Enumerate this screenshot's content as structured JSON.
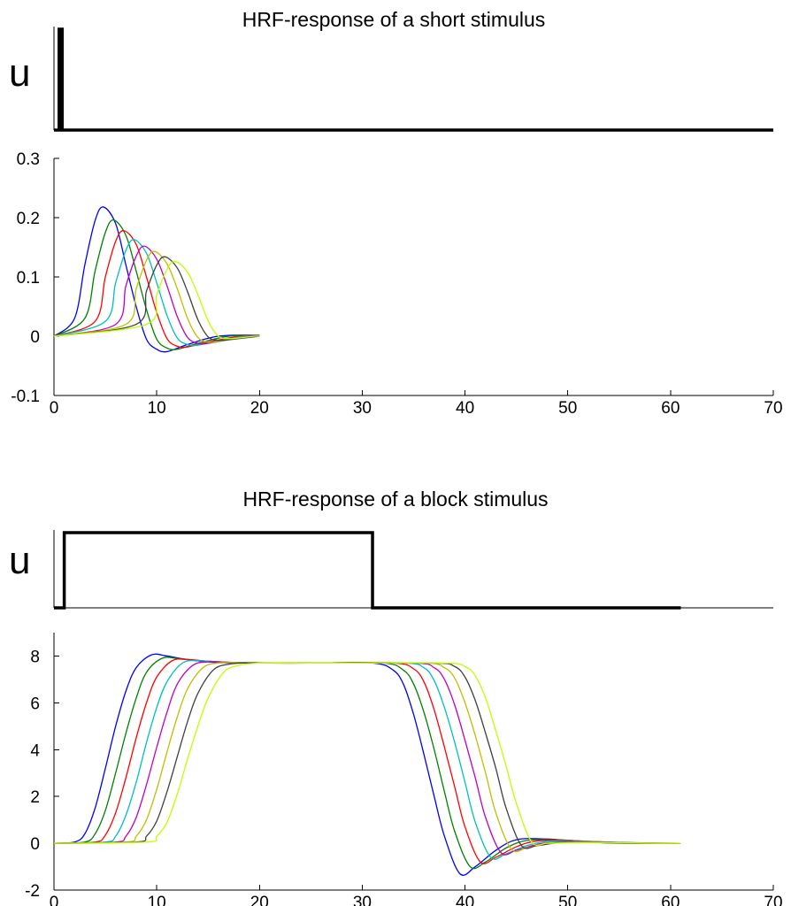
{
  "figure": {
    "panels": [
      {
        "title": "HRF-response of a short stimulus"
      },
      {
        "title": "HRF-response of a block stimulus"
      }
    ]
  },
  "chart_data": [
    {
      "type": "line",
      "title": "HRF-response of a short stimulus",
      "ylabel": "u",
      "xlim": [
        0,
        70
      ],
      "series": [
        {
          "x": [
            0,
            0.5,
            0.5,
            0.8,
            0.8,
            70
          ],
          "values": [
            0,
            0,
            1,
            1,
            0,
            0
          ]
        }
      ],
      "colors": [
        "#000000"
      ]
    },
    {
      "type": "line",
      "title": "",
      "xlabel": "",
      "ylabel": "",
      "xlim": [
        0,
        70
      ],
      "ylim": [
        -0.1,
        0.3
      ],
      "x_ticks": [
        0,
        10,
        20,
        30,
        40,
        50,
        60,
        70
      ],
      "y_ticks": [
        -0.1,
        0,
        0.1,
        0.2,
        0.3
      ],
      "x_tick_labels": [
        "0",
        "10",
        "20",
        "30",
        "40",
        "50",
        "60",
        "70"
      ],
      "y_tick_labels": [
        "-0.1",
        "0",
        "0.1",
        "0.2",
        "0.3"
      ],
      "curve": "short stimulus HRF response, 8 curves with peak times shifted by about 1 s each",
      "series": [
        {
          "x": [
            0,
            2,
            3,
            4,
            4.8,
            6,
            7,
            8,
            9,
            10,
            11,
            13,
            16,
            20
          ],
          "values": [
            0,
            0.03,
            0.12,
            0.195,
            0.218,
            0.19,
            0.12,
            0.05,
            -0.005,
            -0.022,
            -0.026,
            -0.014,
            0,
            0.002
          ]
        },
        {
          "x": [
            0,
            3,
            4,
            5,
            5.8,
            7,
            8,
            9,
            10,
            11,
            12,
            14,
            17,
            20
          ],
          "values": [
            0,
            0.03,
            0.11,
            0.175,
            0.196,
            0.17,
            0.11,
            0.045,
            -0.005,
            -0.02,
            -0.022,
            -0.012,
            0,
            0.002
          ]
        },
        {
          "x": [
            0,
            4,
            5,
            6,
            6.8,
            8,
            9,
            10,
            11,
            12,
            13,
            15,
            18,
            20
          ],
          "values": [
            0,
            0.025,
            0.1,
            0.16,
            0.178,
            0.155,
            0.1,
            0.04,
            -0.004,
            -0.017,
            -0.018,
            -0.01,
            0,
            0.002
          ]
        },
        {
          "x": [
            0,
            5,
            6,
            7,
            7.8,
            9,
            10,
            11,
            12,
            13,
            14,
            16,
            18.5,
            20
          ],
          "values": [
            0,
            0.025,
            0.09,
            0.145,
            0.163,
            0.14,
            0.09,
            0.035,
            -0.003,
            -0.014,
            -0.015,
            -0.008,
            0,
            0.002
          ]
        },
        {
          "x": [
            0,
            6,
            7,
            8,
            8.8,
            10,
            11,
            12,
            13,
            14,
            15,
            17,
            19,
            20
          ],
          "values": [
            0,
            0.02,
            0.085,
            0.135,
            0.152,
            0.13,
            0.085,
            0.033,
            -0.002,
            -0.012,
            -0.012,
            -0.006,
            0,
            0.001
          ]
        },
        {
          "x": [
            0,
            7,
            8,
            9,
            9.8,
            11,
            12,
            13,
            14,
            15,
            16,
            18,
            20
          ],
          "values": [
            0,
            0.02,
            0.08,
            0.128,
            0.143,
            0.122,
            0.08,
            0.03,
            -0.002,
            -0.01,
            -0.009,
            -0.003,
            0
          ]
        },
        {
          "x": [
            0,
            8,
            9,
            10,
            10.8,
            12,
            13,
            14,
            15,
            16,
            17,
            19,
            20
          ],
          "values": [
            0,
            0.02,
            0.076,
            0.12,
            0.134,
            0.115,
            0.075,
            0.028,
            -0.001,
            -0.007,
            -0.006,
            -0.002,
            0
          ]
        },
        {
          "x": [
            0,
            9,
            10,
            11,
            11.8,
            13,
            14,
            15,
            16,
            17,
            18,
            19.5,
            20
          ],
          "values": [
            0,
            0.02,
            0.07,
            0.113,
            0.126,
            0.108,
            0.07,
            0.026,
            0,
            -0.004,
            -0.003,
            0,
            0
          ]
        }
      ],
      "colors": [
        "#0000ff",
        "#008000",
        "#ff0000",
        "#00bfbf",
        "#bf00bf",
        "#bfbf00",
        "#404040",
        "#bfff00"
      ]
    },
    {
      "type": "line",
      "title": "HRF-response of a block stimulus",
      "ylabel": "u",
      "xlim": [
        0,
        70
      ],
      "series": [
        {
          "x": [
            0,
            1,
            1,
            31,
            31,
            61
          ],
          "values": [
            0,
            0,
            1,
            1,
            0,
            0
          ]
        }
      ],
      "colors": [
        "#000000"
      ]
    },
    {
      "type": "line",
      "title": "",
      "xlabel": "",
      "ylabel": "",
      "xlim": [
        0,
        70
      ],
      "ylim": [
        -2,
        9
      ],
      "x_ticks": [
        0,
        10,
        20,
        30,
        40,
        50,
        60,
        70
      ],
      "y_ticks": [
        -2,
        0,
        2,
        4,
        6,
        8
      ],
      "x_tick_labels": [
        "0",
        "10",
        "20",
        "30",
        "40",
        "50",
        "60",
        "70"
      ],
      "y_tick_labels": [
        "-2",
        "0",
        "2",
        "4",
        "6",
        "8"
      ],
      "curve": "block stimulus HRF response, 8 curves each delayed about 1 s relative to the previous",
      "series": [
        {
          "x": [
            0,
            2,
            3,
            4,
            5,
            6,
            7,
            8,
            9.5,
            11,
            13,
            16,
            20,
            25,
            31,
            33,
            34,
            35,
            36,
            37,
            38,
            39.5,
            41,
            43,
            45,
            48,
            52,
            55,
            61
          ],
          "values": [
            0,
            0.05,
            0.4,
            1.5,
            3.2,
            5.0,
            6.5,
            7.5,
            8.05,
            8.0,
            7.85,
            7.72,
            7.7,
            7.7,
            7.7,
            7.4,
            6.8,
            5.5,
            3.8,
            2.0,
            0.3,
            -1.3,
            -1.0,
            -0.3,
            0.15,
            0.18,
            0.05,
            0,
            0
          ]
        },
        {
          "x": [
            0,
            3,
            4,
            5,
            6,
            7,
            8,
            9,
            10.5,
            12,
            14,
            17,
            21,
            25,
            32,
            34,
            35,
            36,
            37,
            38,
            39,
            40.5,
            42,
            44,
            46,
            49,
            53,
            56,
            61
          ],
          "values": [
            0,
            0.05,
            0.4,
            1.4,
            3.0,
            4.7,
            6.2,
            7.3,
            7.9,
            7.9,
            7.8,
            7.72,
            7.7,
            7.7,
            7.7,
            7.4,
            6.8,
            5.6,
            4.0,
            2.2,
            0.5,
            -1.0,
            -0.8,
            -0.2,
            0.12,
            0.15,
            0.04,
            0,
            0
          ]
        },
        {
          "x": [
            0,
            4,
            5,
            6,
            7,
            8,
            9,
            10,
            11.5,
            13,
            15,
            18,
            22,
            25,
            33,
            35,
            36,
            37,
            38,
            39,
            40,
            41.5,
            43,
            45,
            47,
            50,
            54,
            57,
            61
          ],
          "values": [
            0,
            0.05,
            0.35,
            1.3,
            2.8,
            4.5,
            6.0,
            7.1,
            7.8,
            7.85,
            7.78,
            7.72,
            7.7,
            7.7,
            7.7,
            7.45,
            6.9,
            5.7,
            4.1,
            2.4,
            0.7,
            -0.8,
            -0.6,
            -0.15,
            0.1,
            0.12,
            0.03,
            0,
            0
          ]
        },
        {
          "x": [
            0,
            5,
            6,
            7,
            8,
            9,
            10,
            11,
            12.5,
            14,
            16,
            19,
            22,
            25,
            34,
            36,
            37,
            38,
            39,
            40,
            41,
            42.5,
            44,
            46,
            48,
            51,
            55,
            58,
            61
          ],
          "values": [
            0,
            0.05,
            0.3,
            1.2,
            2.6,
            4.3,
            5.8,
            6.9,
            7.7,
            7.8,
            7.75,
            7.71,
            7.7,
            7.7,
            7.7,
            7.5,
            6.95,
            5.8,
            4.3,
            2.6,
            0.9,
            -0.6,
            -0.45,
            -0.1,
            0.08,
            0.1,
            0.02,
            0,
            0
          ]
        },
        {
          "x": [
            0,
            6,
            7,
            8,
            9,
            10,
            11,
            12,
            13.5,
            15,
            17,
            20,
            23,
            25,
            35,
            37,
            38,
            39,
            40,
            41,
            42,
            43.5,
            45,
            47,
            49,
            52,
            56,
            59,
            61
          ],
          "values": [
            0,
            0.05,
            0.3,
            1.1,
            2.5,
            4.1,
            5.6,
            6.8,
            7.6,
            7.75,
            7.73,
            7.71,
            7.7,
            7.7,
            7.7,
            7.5,
            7.0,
            5.9,
            4.4,
            2.8,
            1.1,
            -0.4,
            -0.3,
            -0.05,
            0.06,
            0.08,
            0.02,
            0,
            0
          ]
        },
        {
          "x": [
            0,
            7,
            8,
            9,
            10,
            11,
            12,
            13,
            14.5,
            16,
            18,
            21,
            24,
            26,
            36,
            38,
            39,
            40,
            41,
            42,
            43,
            44.5,
            46,
            48,
            50,
            53,
            57,
            60,
            61
          ],
          "values": [
            0,
            0.05,
            0.3,
            1.0,
            2.3,
            3.9,
            5.4,
            6.6,
            7.5,
            7.7,
            7.72,
            7.7,
            7.7,
            7.7,
            7.7,
            7.5,
            7.05,
            6.0,
            4.6,
            3.0,
            1.3,
            -0.25,
            -0.2,
            0,
            0.05,
            0.06,
            0.01,
            0,
            0
          ]
        },
        {
          "x": [
            0,
            8,
            9,
            10,
            11,
            12,
            13,
            14,
            15.5,
            17,
            19,
            22,
            25,
            27,
            37,
            39,
            40,
            41,
            42,
            43,
            44,
            45.5,
            47,
            49,
            51,
            54,
            58,
            61
          ],
          "values": [
            0,
            0.05,
            0.3,
            0.95,
            2.2,
            3.7,
            5.2,
            6.4,
            7.4,
            7.65,
            7.71,
            7.7,
            7.7,
            7.7,
            7.7,
            7.55,
            7.1,
            6.1,
            4.7,
            3.2,
            1.5,
            -0.1,
            -0.1,
            0.02,
            0.04,
            0.04,
            0.01,
            0
          ]
        },
        {
          "x": [
            0,
            9,
            10,
            11,
            12,
            13,
            14,
            15,
            16.5,
            18,
            20,
            23,
            26,
            28,
            38,
            40,
            41,
            42,
            43,
            44,
            45,
            46.5,
            48,
            50,
            52,
            55,
            59,
            61
          ],
          "values": [
            0,
            0.05,
            0.3,
            0.9,
            2.1,
            3.6,
            5.0,
            6.2,
            7.3,
            7.6,
            7.7,
            7.7,
            7.7,
            7.7,
            7.7,
            7.55,
            7.15,
            6.2,
            4.8,
            3.3,
            1.7,
            0.05,
            0,
            0.02,
            0.03,
            0.02,
            0,
            0
          ]
        }
      ],
      "colors": [
        "#0000ff",
        "#008000",
        "#ff0000",
        "#00bfbf",
        "#bf00bf",
        "#bfbf00",
        "#404040",
        "#bfff00"
      ]
    }
  ]
}
